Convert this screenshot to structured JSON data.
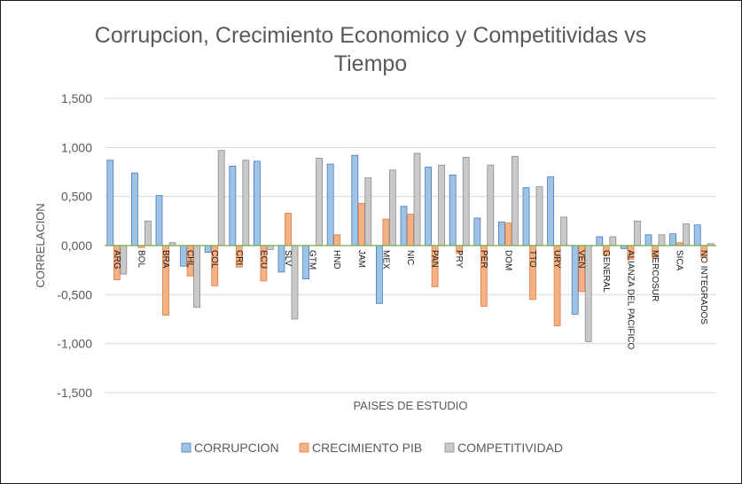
{
  "chart_data": {
    "type": "bar",
    "title_lines": [
      "Corrupcion, Crecimiento Economico y Competitividas vs",
      "Tiempo"
    ],
    "xlabel": "PAISES DE ESTUDIO",
    "ylabel": "CORRELACION",
    "ylim": [
      -1.5,
      1.5
    ],
    "yticks": [
      1.5,
      1.0,
      0.5,
      0.0,
      -0.5,
      -1.0,
      -1.5
    ],
    "ytick_labels": [
      "1,500",
      "1,000",
      "0,500",
      "0,000",
      "-0,500",
      "-1,000",
      "-1,500"
    ],
    "grid": true,
    "legend_position": "bottom",
    "categories": [
      "ARG",
      "BOL",
      "BRA",
      "CHL",
      "COL",
      "CRI",
      "ECU",
      "SLV",
      "GTM",
      "HND",
      "JAM",
      "MEX",
      "NIC",
      "PAN",
      "PRY",
      "PER",
      "DOM",
      "TTO",
      "URY",
      "VEN",
      "GENERAL",
      "ALIANZA DEL PACIFICO",
      "MERCOSUR",
      "SICA",
      "NO INTEGRADOS"
    ],
    "series": [
      {
        "name": "CORRUPCION",
        "color": "#9dc3e6",
        "stroke": "#4a7ab8",
        "values": [
          0.87,
          0.74,
          0.51,
          -0.21,
          -0.07,
          0.81,
          0.86,
          -0.27,
          -0.34,
          0.83,
          0.92,
          -0.59,
          0.4,
          0.8,
          0.72,
          0.28,
          0.24,
          0.59,
          0.7,
          -0.7,
          0.09,
          -0.03,
          0.11,
          0.12,
          0.21
        ]
      },
      {
        "name": "CRECIMIENTO PIB",
        "color": "#f4b183",
        "stroke": "#e07b48",
        "values": [
          -0.35,
          -0.02,
          -0.71,
          -0.31,
          -0.41,
          -0.22,
          -0.36,
          0.33,
          0.0,
          0.11,
          0.43,
          0.27,
          0.32,
          -0.42,
          -0.08,
          -0.62,
          0.23,
          -0.55,
          -0.82,
          -0.47,
          -0.1,
          -0.14,
          -0.12,
          0.03,
          -0.12
        ]
      },
      {
        "name": "COMPETITIVIDAD",
        "color": "#c9c9c9",
        "stroke": "#8c8c8c",
        "values": [
          -0.29,
          0.25,
          0.03,
          -0.63,
          0.97,
          0.87,
          -0.04,
          -0.75,
          0.89,
          0.0,
          0.69,
          0.77,
          0.94,
          0.82,
          0.9,
          0.82,
          0.91,
          0.6,
          0.29,
          -0.98,
          0.09,
          0.25,
          0.11,
          0.22,
          0.02
        ]
      }
    ],
    "zero_line_color": "#70ad47"
  }
}
